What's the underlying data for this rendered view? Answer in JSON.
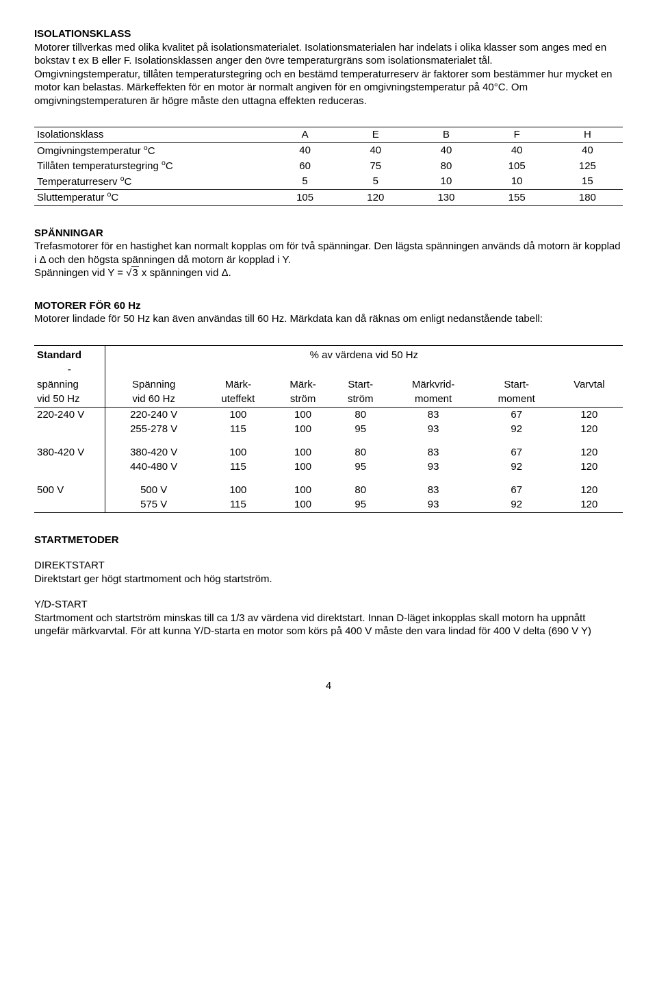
{
  "sections": {
    "isolationsklass": {
      "title": "ISOLATIONSKLASS",
      "body": "Motorer tillverkas med olika kvalitet på isolationsmaterialet. Isolationsmaterialen har indelats i olika klasser som anges med en bokstav t ex B eller F. Isolationsklassen anger den övre temperaturgräns som isolationsmaterialet tål.\nOmgivningstemperatur, tillåten temperaturstegring och en bestämd temperaturreserv är faktorer som bestämmer hur mycket en motor kan belastas. Märkeffekten för en motor är normalt angiven för en omgivningstemperatur på 40°C. Om omgivningstemperaturen är högre måste den uttagna effekten reduceras."
    },
    "table1": {
      "row_labels": [
        "Isolationsklass",
        "Omgivningstemperatur °C",
        "Tillåten temperaturstegring °C",
        "Temperaturreserv °C",
        "Sluttemperatur °C"
      ],
      "superscript_rows": [
        false,
        true,
        true,
        true,
        true
      ],
      "columns": [
        "A",
        "E",
        "B",
        "F",
        "H"
      ],
      "data": [
        [
          40,
          40,
          40,
          40,
          40
        ],
        [
          60,
          75,
          80,
          105,
          125
        ],
        [
          5,
          5,
          10,
          10,
          15
        ],
        [
          105,
          120,
          130,
          155,
          180
        ]
      ]
    },
    "spanningar": {
      "title": "SPÄNNINGAR",
      "body1": "Trefasmotorer för en hastighet kan normalt kopplas om för två spänningar. Den lägsta spänningen används då motorn är kopplad i Δ och den högsta spänningen då motorn är kopplad i Y.",
      "body2_pre": "Spänningen vid Y = ",
      "body2_sqrt": "3",
      "body2_post": " x spänningen vid Δ."
    },
    "motorer60": {
      "title": "MOTORER FÖR 60 Hz",
      "body": "Motorer lindade för 50 Hz kan även användas till 60 Hz. Märkdata kan då räknas om enligt nedanstående tabell:"
    },
    "table2": {
      "head_left_top": "Standard",
      "head_left_dash": "-",
      "head_right_merged": "% av värdena vid 50 Hz",
      "head_row2_left": [
        "spänning",
        "vid 50 Hz"
      ],
      "head_row2_cols": [
        [
          "Spänning",
          "vid 60 Hz"
        ],
        [
          "Märk-",
          "uteffekt"
        ],
        [
          "Märk-",
          "ström"
        ],
        [
          "Start-",
          "ström"
        ],
        [
          "Märkvrid-",
          "moment"
        ],
        [
          "Start-",
          "moment"
        ],
        [
          "Varvtal",
          ""
        ]
      ],
      "groups": [
        {
          "left": "220-240 V",
          "rows": [
            [
              "220-240 V",
              "100",
              "100",
              "80",
              "83",
              "67",
              "120"
            ],
            [
              "255-278 V",
              "115",
              "100",
              "95",
              "93",
              "92",
              "120"
            ]
          ]
        },
        {
          "left": "380-420 V",
          "rows": [
            [
              "380-420 V",
              "100",
              "100",
              "80",
              "83",
              "67",
              "120"
            ],
            [
              "440-480 V",
              "115",
              "100",
              "95",
              "93",
              "92",
              "120"
            ]
          ]
        },
        {
          "left": "500 V",
          "rows": [
            [
              "500 V",
              "100",
              "100",
              "80",
              "83",
              "67",
              "120"
            ],
            [
              "575 V",
              "115",
              "100",
              "95",
              "93",
              "92",
              "120"
            ]
          ]
        }
      ]
    },
    "startmetoder": {
      "title": "STARTMETODER",
      "direkt_title": "DIREKTSTART",
      "direkt_body": "Direktstart ger högt startmoment och hög startström.",
      "yd_title": "Y/D-START",
      "yd_body": "Startmoment och startström minskas till ca 1/3 av värdena vid direktstart. Innan D-läget inkopplas skall motorn ha uppnått ungefär märkvarvtal. För att kunna Y/D-starta en motor som körs på 400 V måste den vara lindad för 400 V delta (690 V Y)"
    },
    "page_number": "4"
  }
}
